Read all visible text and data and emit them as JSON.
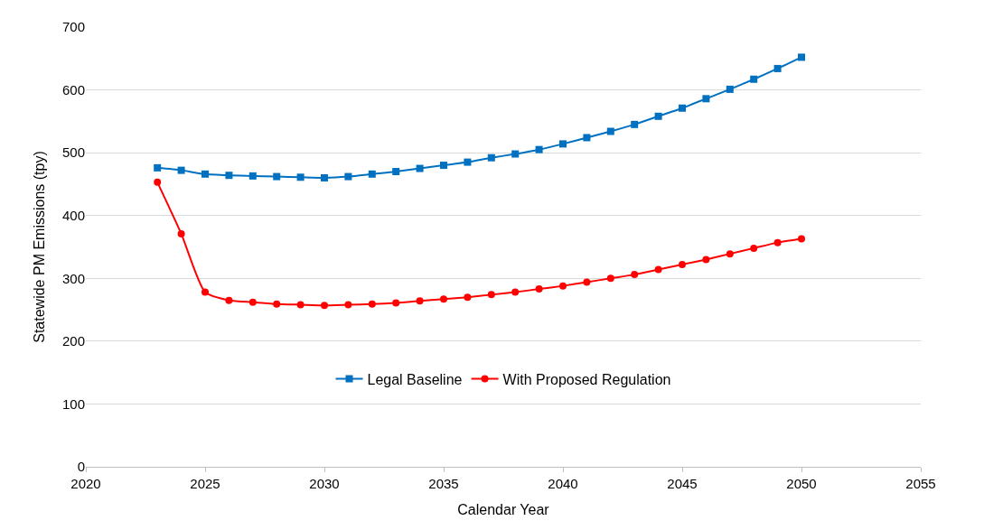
{
  "chart_data": {
    "type": "line",
    "xlabel": "Calendar Year",
    "ylabel": "Statewide PM Emissions (tpy)",
    "x": [
      2023,
      2024,
      2025,
      2026,
      2027,
      2028,
      2029,
      2030,
      2031,
      2032,
      2033,
      2034,
      2035,
      2036,
      2037,
      2038,
      2039,
      2040,
      2041,
      2042,
      2043,
      2044,
      2045,
      2046,
      2047,
      2048,
      2049,
      2050
    ],
    "series": [
      {
        "name": "Legal Baseline",
        "color": "#0070c0",
        "marker": "square",
        "values": [
          476,
          472,
          466,
          464,
          463,
          462,
          461,
          460,
          462,
          466,
          470,
          475,
          480,
          485,
          492,
          498,
          505,
          514,
          524,
          534,
          545,
          558,
          571,
          586,
          601,
          617,
          634,
          652
        ]
      },
      {
        "name": "With Proposed Regulation",
        "color": "#ff0000",
        "marker": "circle",
        "values": [
          453,
          371,
          278,
          265,
          262,
          259,
          258,
          257,
          258,
          259,
          261,
          264,
          267,
          270,
          274,
          278,
          283,
          288,
          294,
          300,
          306,
          314,
          322,
          330,
          339,
          348,
          357,
          363
        ]
      }
    ],
    "xlim": [
      2020,
      2055
    ],
    "xticks": [
      2020,
      2025,
      2030,
      2035,
      2040,
      2045,
      2050,
      2055
    ],
    "ylim": [
      0,
      700
    ],
    "yticks": [
      0,
      100,
      200,
      300,
      400,
      500,
      600,
      700
    ],
    "grid": "y",
    "legend": "bottom",
    "line_style": "solid"
  }
}
